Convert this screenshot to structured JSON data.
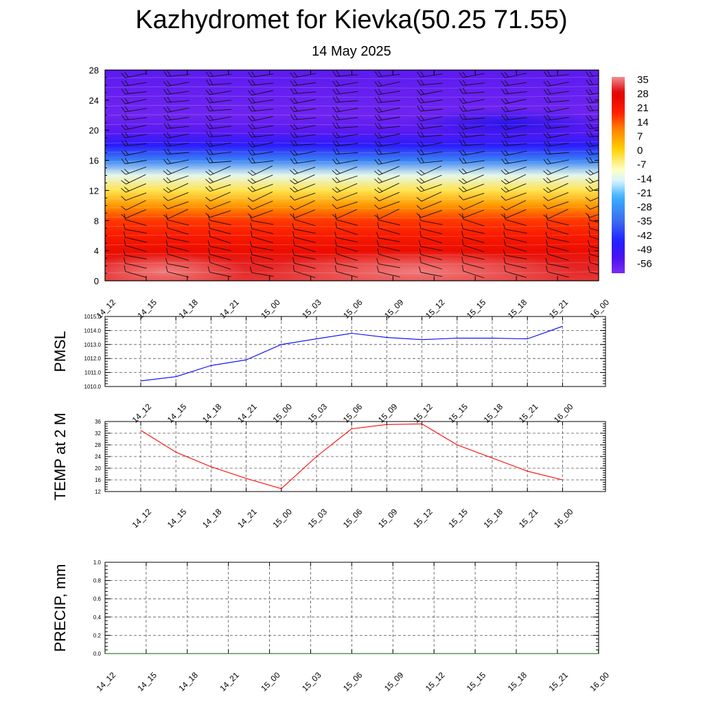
{
  "title": "Kazhydromet for Kievka(50.25 71.55)",
  "subtitle": "14 May 2025",
  "colors": {
    "pmsl_line": "#0000ff",
    "temp_line": "#ff0000",
    "precip_line": "#006400",
    "grid": "#555555",
    "palette": [
      "#7b2bf0",
      "#4a10f0",
      "#2020ff",
      "#3a6cf0",
      "#3ab0ff",
      "#d8f4ff",
      "#ffffc0",
      "#ffd000",
      "#ff8000",
      "#ff2000",
      "#e00000",
      "#f09090"
    ]
  },
  "chart_data": [
    {
      "type": "heatmap",
      "name": "cross-section",
      "x": [
        "14_12",
        "14_15",
        "14_18",
        "14_21",
        "15_00",
        "15_03",
        "15_06",
        "15_09",
        "15_12",
        "15_15",
        "15_18",
        "15_21",
        "16_00"
      ],
      "yticks": [
        0,
        4,
        8,
        12,
        16,
        20,
        24,
        28
      ],
      "ylim": [
        0,
        28
      ],
      "colorbar_labels": [
        "35",
        "28",
        "21",
        "14",
        "7",
        "0",
        "-7",
        "-14",
        "-21",
        "-28",
        "-35",
        "-42",
        "-49",
        "-56"
      ],
      "colorbar_range": [
        -60,
        38
      ],
      "profile": [
        [
          0,
          33
        ],
        [
          2,
          32
        ],
        [
          4,
          26
        ],
        [
          6,
          22
        ],
        [
          8,
          18
        ],
        [
          10,
          9
        ],
        [
          12,
          -2
        ],
        [
          14,
          -12
        ],
        [
          16,
          -30
        ],
        [
          18,
          -46
        ],
        [
          20,
          -55
        ],
        [
          22,
          -58
        ],
        [
          24,
          -57
        ],
        [
          26,
          -56
        ],
        [
          28,
          -55
        ]
      ]
    },
    {
      "type": "line",
      "name": "pmsl",
      "ylabel": "PMSL",
      "x": [
        "14_12",
        "14_15",
        "14_18",
        "14_21",
        "15_00",
        "15_03",
        "15_06",
        "15_09",
        "15_12",
        "15_15",
        "15_18",
        "15_21",
        "16_00"
      ],
      "values": [
        1010.4,
        1010.7,
        1011.5,
        1011.9,
        1013.0,
        1013.4,
        1013.8,
        1013.5,
        1013.35,
        1013.45,
        1013.45,
        1013.4,
        1014.3
      ],
      "ylim": [
        1010,
        1015
      ],
      "yticks": [
        "1010.0",
        "1011.0",
        "1012.0",
        "1013.0",
        "1014.0",
        "1015.0"
      ],
      "grid": true
    },
    {
      "type": "line",
      "name": "temp",
      "ylabel": "TEMP at 2 M",
      "x": [
        "14_12",
        "14_15",
        "14_18",
        "14_21",
        "15_00",
        "15_03",
        "15_06",
        "15_09",
        "15_12",
        "15_15",
        "15_18",
        "15_21",
        "16_00"
      ],
      "values": [
        33,
        25.5,
        20.5,
        16.5,
        13,
        24,
        33.5,
        35,
        35.2,
        28,
        23.5,
        19,
        16
      ],
      "ylim": [
        12,
        36
      ],
      "yticks": [
        "12",
        "16",
        "20",
        "24",
        "28",
        "32",
        "36"
      ],
      "grid": true
    },
    {
      "type": "line",
      "name": "precip",
      "ylabel": "PRECIP, mm",
      "x": [
        "14_12",
        "14_15",
        "14_18",
        "14_21",
        "15_00",
        "15_03",
        "15_06",
        "15_09",
        "15_12",
        "15_15",
        "15_18",
        "15_21",
        "16_00"
      ],
      "values": [
        0,
        0,
        0,
        0,
        0,
        0,
        0,
        0,
        0,
        0,
        0,
        0,
        0
      ],
      "ylim": [
        0,
        1
      ],
      "yticks": [
        "0.0",
        "0.2",
        "0.4",
        "0.6",
        "0.8",
        "1.0"
      ],
      "grid": true
    }
  ]
}
